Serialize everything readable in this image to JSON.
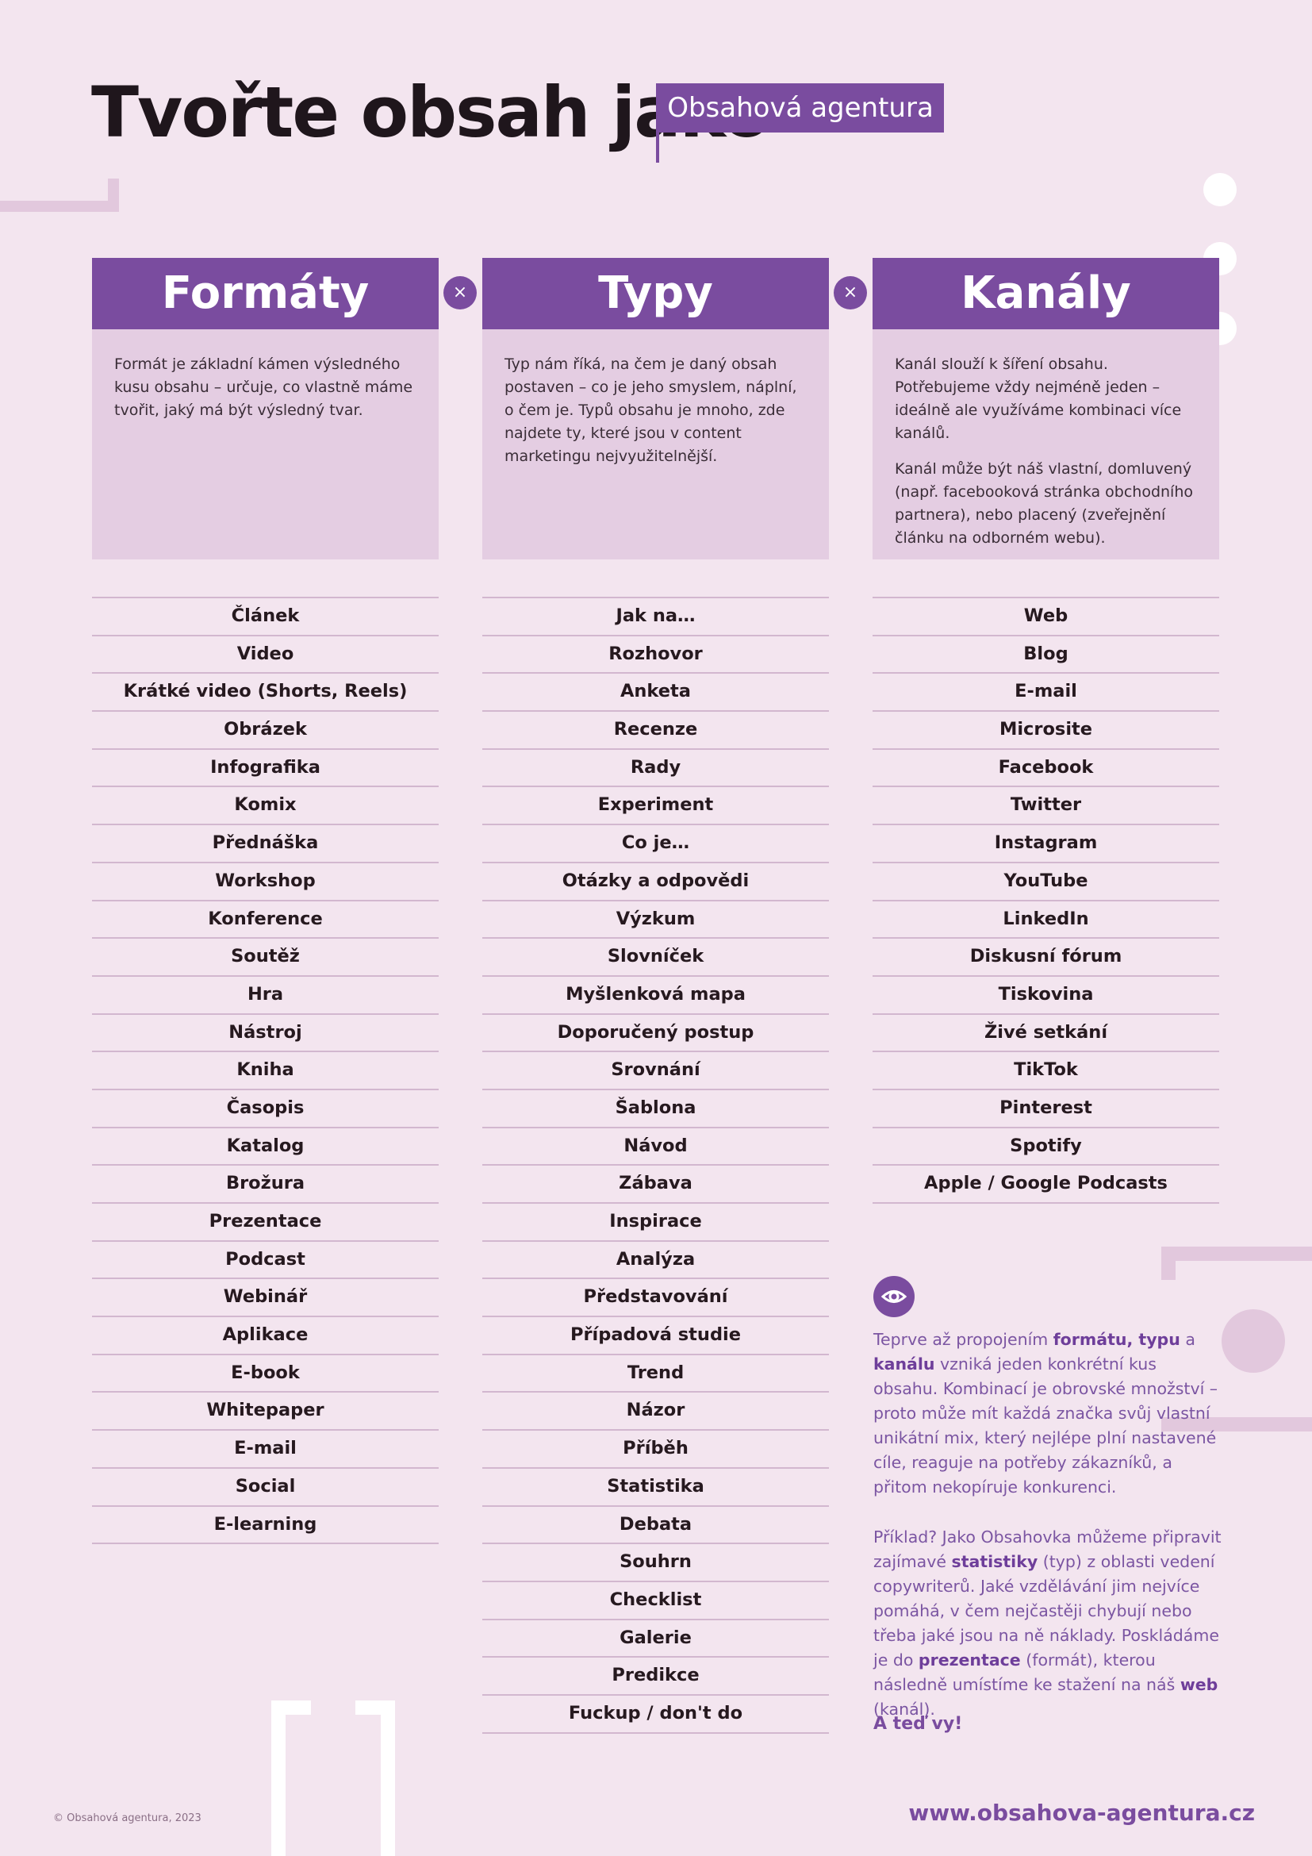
{
  "title": {
    "main": "Tvořte obsah jako",
    "badge": "Obsahová agentura"
  },
  "colors": {
    "accent": "#7a4c9f",
    "background": "#f3e5ef",
    "panel": "#e4cde2"
  },
  "icons": {
    "connector": "close-icon",
    "info": "eye-icon"
  },
  "connectors": [
    "×",
    "×"
  ],
  "columns": [
    {
      "heading": "Formáty",
      "description": [
        "Formát je základní kámen výsledného kusu obsahu – určuje, co vlastně máme tvořit, jaký má být výsledný tvar."
      ],
      "items": [
        "Článek",
        "Video",
        "Krátké video (Shorts, Reels)",
        "Obrázek",
        "Infografika",
        "Komix",
        "Přednáška",
        "Workshop",
        "Konference",
        "Soutěž",
        "Hra",
        "Nástroj",
        "Kniha",
        "Časopis",
        "Katalog",
        "Brožura",
        "Prezentace",
        "Podcast",
        "Webinář",
        "Aplikace",
        "E-book",
        "Whitepaper",
        "E-mail",
        "Social",
        "E-learning"
      ]
    },
    {
      "heading": "Typy",
      "description": [
        "Typ nám říká, na čem je daný obsah postaven – co je jeho smyslem, náplní, o čem je. Typů obsahu je mnoho, zde najdete ty, které jsou v content marketingu nejvyužitelnější."
      ],
      "items": [
        "Jak na…",
        "Rozhovor",
        "Anketa",
        "Recenze",
        "Rady",
        "Experiment",
        "Co je…",
        "Otázky a odpovědi",
        "Výzkum",
        "Slovníček",
        "Myšlenková mapa",
        "Doporučený postup",
        "Srovnání",
        "Šablona",
        "Návod",
        "Zábava",
        "Inspirace",
        "Analýza",
        "Představování",
        "Případová studie",
        "Trend",
        "Názor",
        "Příběh",
        "Statistika",
        "Debata",
        "Souhrn",
        "Checklist",
        "Galerie",
        "Predikce",
        "Fuckup / don't do"
      ]
    },
    {
      "heading": "Kanály",
      "description": [
        "Kanál slouží k šíření obsahu. Potřebujeme vždy nejméně jeden – ideálně ale využíváme kombinaci více kanálů.",
        "Kanál může být náš vlastní, domluvený (např. facebooková stránka obchodního partnera), nebo placený (zveřejnění článku na odborném webu)."
      ],
      "items": [
        "Web",
        "Blog",
        "E-mail",
        "Microsite",
        "Facebook",
        "Twitter",
        "Instagram",
        "YouTube",
        "LinkedIn",
        "Diskusní fórum",
        "Tiskovina",
        "Živé setkání",
        "TikTok",
        "Pinterest",
        "Spotify",
        "Apple / Google Podcasts"
      ]
    }
  ],
  "info": {
    "p1": [
      "Teprve až propojením ",
      "formátu, typu",
      " a ",
      "kanálu",
      " vzniká jeden konkrétní kus obsahu. Kombinací je obrovské množství – proto může mít každá značka svůj vlastní unikátní mix, který nejlépe plní nastavené cíle, reaguje na potřeby zákazníků, a přitom nekopíruje konkurenci."
    ],
    "p2": [
      "Příklad? Jako Obsahovka můžeme připravit zajímavé ",
      "statistiky",
      " (typ) z oblasti vedení copywriterů. Jaké vzdělávání jim nejvíce pomáhá, v čem nejčastěji chybují nebo třeba jaké jsou na ně náklady. Poskládáme je do ",
      "prezentace",
      " (formát), kterou následně umístíme ke stažení na náš ",
      "web",
      " (kanál)."
    ],
    "cta": "A teď vy!"
  },
  "footer": {
    "copyright": "© Obsahová agentura, 2023",
    "website": "www.obsahova-agentura.cz"
  }
}
